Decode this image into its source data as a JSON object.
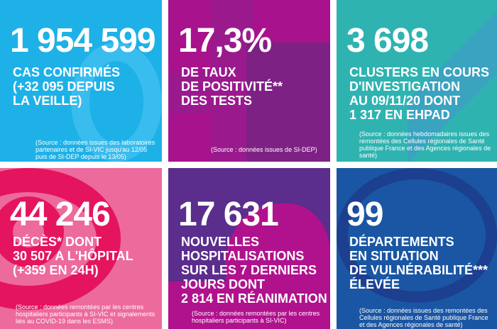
{
  "tiles": [
    {
      "value": "1 954 599",
      "label": [
        "CAS CONFIRMÉS",
        "(+32 095 DEPUIS",
        "LA VEILLE)"
      ],
      "source": [
        "(Source : données issues des laboratoires",
        "partenaires et de SI-VIC jusqu'au 12/05",
        "puis de SI-DEP depuis le 13/05)"
      ],
      "color": "#1eb1e7"
    },
    {
      "value": "17,3%",
      "label": [
        "DE TAUX",
        "DE POSITIVITÉ**",
        "DES TESTS"
      ],
      "source": [
        "(Source : données issues de SI-DEP)"
      ],
      "color": "#a8128c"
    },
    {
      "value": "3 698",
      "label": [
        "CLUSTERS EN COURS",
        "D'INVESTIGATION",
        "AU 09/11/20 DONT",
        "1 317 EN EHPAD"
      ],
      "source": [
        "(Source : données hebdomadaires issues des",
        "remontées des Cellules régionales de Santé",
        "publique France et des Agences régionales de",
        "santé)"
      ],
      "color": "#2fb3b1"
    },
    {
      "value": "44 246",
      "label": [
        "DÉCÈS* DONT",
        "30 507 A L'HÔPITAL",
        "(+359 EN 24H)"
      ],
      "source": [
        "(Source : données remontées par les centres",
        "hospitaliers participants à SI-VIC et signalements",
        "liés au COVID-19 dans les ESMS)"
      ],
      "color": "#ec6a9c"
    },
    {
      "value": "17 631",
      "label": [
        "NOUVELLES",
        "HOSPITALISATIONS",
        "SUR LES 7 DERNIERS",
        "JOURS DONT",
        "2 814 EN RÉANIMATION"
      ],
      "source": [
        "(Source : données remontées par les centres",
        "hospitaliers participants à SI-VIC)"
      ],
      "color": "#5b2d8c"
    },
    {
      "value": "99",
      "label": [
        "DÉPARTEMENTS",
        "EN SITUATION",
        "DE VULNÉRABILITÉ***",
        "ÉLEVÉE"
      ],
      "source": [
        "(Source : données issues des remontées des",
        "Cellules régionales de Santé publique France",
        "et des Agences régionales de santé)"
      ],
      "color": "#1a56a3"
    }
  ]
}
